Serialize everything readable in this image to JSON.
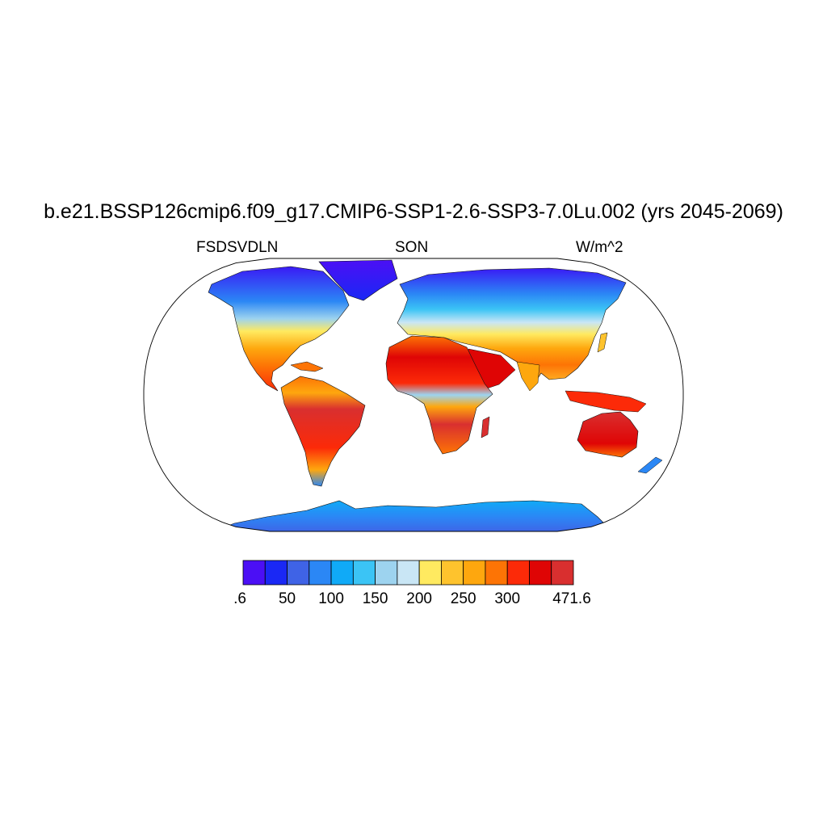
{
  "title": "b.e21.BSSP126cmip6.f09_g17.CMIP6-SSP1-2.6-SSP3-7.0Lu.002 (yrs 2045-2069)",
  "left_label": "FSDSVDLN",
  "center_label": "SON",
  "right_label": "W/m^2",
  "colorbar": {
    "colors": [
      "#4b0ff5",
      "#1a28f5",
      "#3f63e6",
      "#2b87f5",
      "#10aaf7",
      "#3bc4f5",
      "#9dd3ef",
      "#c9e6f5",
      "#ffea60",
      "#fec32d",
      "#fea70e",
      "#fd7405",
      "#fc2a08",
      "#df0505",
      "#d92f2f"
    ],
    "labels": [
      ".6",
      "50",
      "100",
      "150",
      "200",
      "250",
      "300",
      "471.6"
    ]
  },
  "map": {
    "projection": "Robinson",
    "ocean_color": "#ffffff",
    "outline_color": "#000000"
  }
}
